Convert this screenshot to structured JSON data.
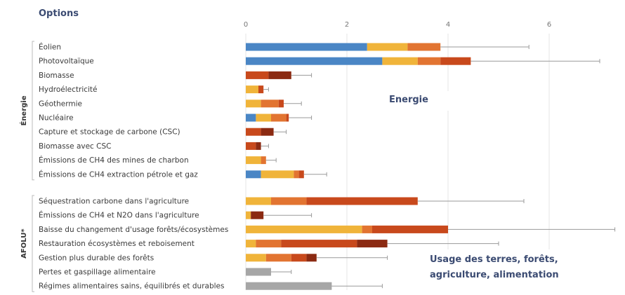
{
  "chart_data": {
    "type": "bar",
    "stacked": true,
    "title": "Options",
    "xlim": [
      0,
      6.5
    ],
    "xticks": [
      0,
      2,
      4,
      6
    ],
    "groups": [
      {
        "label": "Énergie",
        "box_label": "Energie"
      },
      {
        "label": "AFOLU",
        "superscript": "*",
        "box_label": "Usage des terres, forêts, agriculture, alimentation"
      }
    ],
    "categories": [
      "Éolien",
      "Photovoltaïque",
      "Biomasse",
      "Hydroélectricité",
      "Géothermie",
      "Nucléaire",
      "Capture et stockage de carbone (CSC)",
      "Biomasse avec CSC",
      "Émissions de CH4 des mines de charbon",
      "Émissions de CH4 extraction pétrole et gaz",
      "Séquestration carbone dans l'agriculture",
      "Émissions de CH4 et N2O dans l'agriculture",
      "Baisse du changement d'usage forêts/écosystèmes",
      "Restauration écosystèmes et reboisement",
      "Gestion plus durable des forêts",
      "Pertes et gaspillage alimentaire",
      "Régimes alimentaires sains, équilibrés et durables"
    ],
    "category_group": [
      0,
      0,
      0,
      0,
      0,
      0,
      0,
      0,
      0,
      0,
      1,
      1,
      1,
      1,
      1,
      1,
      1
    ],
    "segment_colors": [
      "#4a86c5",
      "#f0b43a",
      "#e27431",
      "#c8491c",
      "#8b2a12",
      "#a6a6a6"
    ],
    "bars": [
      {
        "segments": [
          [
            0,
            2.4
          ],
          [
            1,
            0.8
          ],
          [
            2,
            0.65
          ]
        ],
        "error_max": 5.6
      },
      {
        "segments": [
          [
            0,
            2.7
          ],
          [
            1,
            0.7
          ],
          [
            2,
            0.45
          ],
          [
            3,
            0.6
          ]
        ],
        "error_max": 7.0
      },
      {
        "segments": [
          [
            3,
            0.45
          ],
          [
            4,
            0.45
          ]
        ],
        "error_max": 1.3
      },
      {
        "segments": [
          [
            1,
            0.25
          ],
          [
            3,
            0.1
          ]
        ],
        "error_max": 0.45
      },
      {
        "segments": [
          [
            1,
            0.3
          ],
          [
            2,
            0.35
          ],
          [
            3,
            0.1
          ]
        ],
        "error_max": 1.1
      },
      {
        "segments": [
          [
            0,
            0.2
          ],
          [
            1,
            0.3
          ],
          [
            2,
            0.3
          ],
          [
            3,
            0.05
          ]
        ],
        "error_max": 1.3
      },
      {
        "segments": [
          [
            3,
            0.3
          ],
          [
            4,
            0.25
          ]
        ],
        "error_max": 0.8
      },
      {
        "segments": [
          [
            3,
            0.2
          ],
          [
            4,
            0.1
          ]
        ],
        "error_max": 0.45
      },
      {
        "segments": [
          [
            1,
            0.3
          ],
          [
            2,
            0.1
          ]
        ],
        "error_max": 0.6
      },
      {
        "segments": [
          [
            0,
            0.3
          ],
          [
            1,
            0.65
          ],
          [
            2,
            0.1
          ],
          [
            3,
            0.1
          ]
        ],
        "error_max": 1.6
      },
      {
        "segments": [
          [
            1,
            0.5
          ],
          [
            2,
            0.7
          ],
          [
            3,
            2.2
          ]
        ],
        "error_max": 5.5
      },
      {
        "segments": [
          [
            1,
            0.1
          ],
          [
            4,
            0.25
          ]
        ],
        "error_max": 1.3
      },
      {
        "segments": [
          [
            1,
            2.3
          ],
          [
            2,
            0.2
          ],
          [
            3,
            1.5
          ]
        ],
        "error_max": 7.3
      },
      {
        "segments": [
          [
            1,
            0.2
          ],
          [
            2,
            0.5
          ],
          [
            3,
            1.5
          ],
          [
            4,
            0.6
          ]
        ],
        "error_max": 5.0
      },
      {
        "segments": [
          [
            1,
            0.4
          ],
          [
            2,
            0.5
          ],
          [
            3,
            0.3
          ],
          [
            4,
            0.2
          ]
        ],
        "error_max": 2.8
      },
      {
        "segments": [
          [
            5,
            0.5
          ]
        ],
        "error_max": 0.9
      },
      {
        "segments": [
          [
            5,
            1.7
          ]
        ],
        "error_max": 2.7
      }
    ]
  }
}
